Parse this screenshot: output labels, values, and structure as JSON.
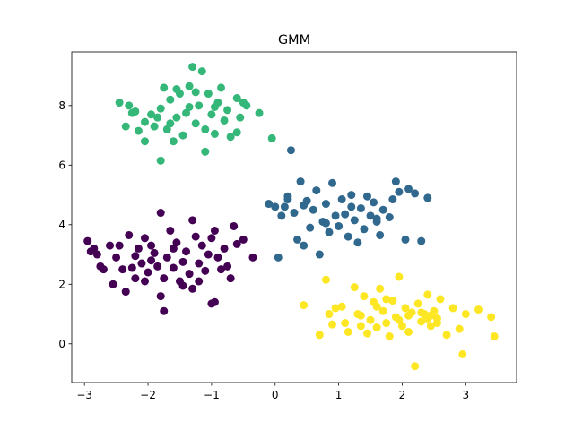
{
  "chart_data": {
    "type": "scatter",
    "title": "GMM",
    "xlabel": "",
    "ylabel": "",
    "xlim": [
      -3.2,
      3.8
    ],
    "ylim": [
      -1.3,
      9.8
    ],
    "xticks": [
      -3,
      -2,
      -1,
      0,
      1,
      2,
      3
    ],
    "yticks": [
      0,
      2,
      4,
      6,
      8
    ],
    "grid": false,
    "legend": "none",
    "series": [
      {
        "color": "#440154",
        "points": [
          [
            -2.95,
            3.45
          ],
          [
            -2.9,
            3.1
          ],
          [
            -2.85,
            3.2
          ],
          [
            -2.8,
            3.0
          ],
          [
            -2.75,
            2.6
          ],
          [
            -2.7,
            2.5
          ],
          [
            -2.55,
            2.0
          ],
          [
            -2.5,
            2.9
          ],
          [
            -2.45,
            3.3
          ],
          [
            -2.4,
            2.5
          ],
          [
            -2.35,
            1.75
          ],
          [
            -2.3,
            3.65
          ],
          [
            -2.25,
            2.55
          ],
          [
            -2.2,
            2.2
          ],
          [
            -2.15,
            3.2
          ],
          [
            -2.1,
            2.7
          ],
          [
            -2.05,
            2.1
          ],
          [
            -2.0,
            2.4
          ],
          [
            -1.95,
            2.8
          ],
          [
            -1.9,
            3.05
          ],
          [
            -1.85,
            2.6
          ],
          [
            -1.8,
            4.4
          ],
          [
            -1.8,
            1.6
          ],
          [
            -1.75,
            2.2
          ],
          [
            -1.75,
            1.1
          ],
          [
            -1.7,
            2.9
          ],
          [
            -1.65,
            3.8
          ],
          [
            -1.6,
            2.55
          ],
          [
            -1.55,
            3.4
          ],
          [
            -1.5,
            2.1
          ],
          [
            -1.45,
            1.95
          ],
          [
            -1.4,
            3.1
          ],
          [
            -1.35,
            2.35
          ],
          [
            -1.3,
            1.85
          ],
          [
            -1.3,
            4.15
          ],
          [
            -1.25,
            3.6
          ],
          [
            -1.2,
            2.7
          ],
          [
            -1.15,
            3.3
          ],
          [
            -1.1,
            2.45
          ],
          [
            -1.05,
            3.0
          ],
          [
            -1.0,
            1.35
          ],
          [
            -0.95,
            3.8
          ],
          [
            -0.9,
            2.9
          ],
          [
            -0.85,
            2.5
          ],
          [
            -0.8,
            3.2
          ],
          [
            -0.7,
            2.2
          ],
          [
            -0.65,
            3.95
          ],
          [
            -0.6,
            3.35
          ],
          [
            -0.5,
            3.5
          ],
          [
            -0.35,
            2.9
          ],
          [
            -1.95,
            3.3
          ],
          [
            -2.05,
            3.55
          ],
          [
            -1.6,
            3.2
          ],
          [
            -1.0,
            3.55
          ],
          [
            -1.2,
            2.1
          ],
          [
            -2.6,
            3.3
          ],
          [
            -2.2,
            2.95
          ],
          [
            -1.45,
            2.75
          ],
          [
            -0.95,
            1.4
          ],
          [
            -0.75,
            2.6
          ]
        ]
      },
      {
        "color": "#31688e",
        "points": [
          [
            -0.1,
            4.7
          ],
          [
            0.0,
            4.6
          ],
          [
            0.05,
            2.9
          ],
          [
            0.1,
            4.3
          ],
          [
            0.15,
            4.6
          ],
          [
            0.2,
            4.95
          ],
          [
            0.25,
            6.5
          ],
          [
            0.3,
            4.4
          ],
          [
            0.35,
            3.5
          ],
          [
            0.4,
            5.45
          ],
          [
            0.45,
            3.3
          ],
          [
            0.5,
            4.8
          ],
          [
            0.55,
            3.9
          ],
          [
            0.6,
            4.5
          ],
          [
            0.65,
            5.15
          ],
          [
            0.7,
            3.0
          ],
          [
            0.75,
            4.1
          ],
          [
            0.8,
            4.7
          ],
          [
            0.85,
            3.75
          ],
          [
            0.9,
            5.4
          ],
          [
            0.95,
            4.3
          ],
          [
            1.0,
            3.95
          ],
          [
            1.05,
            4.85
          ],
          [
            1.1,
            4.35
          ],
          [
            1.15,
            3.6
          ],
          [
            1.2,
            5.0
          ],
          [
            1.25,
            4.15
          ],
          [
            1.3,
            3.4
          ],
          [
            1.35,
            4.55
          ],
          [
            1.4,
            3.85
          ],
          [
            1.45,
            4.95
          ],
          [
            1.5,
            4.3
          ],
          [
            1.55,
            4.75
          ],
          [
            1.6,
            4.2
          ],
          [
            1.65,
            3.65
          ],
          [
            1.7,
            4.5
          ],
          [
            1.8,
            4.25
          ],
          [
            1.85,
            4.85
          ],
          [
            1.9,
            5.45
          ],
          [
            1.95,
            5.1
          ],
          [
            2.05,
            3.5
          ],
          [
            2.1,
            5.2
          ],
          [
            2.2,
            5.05
          ],
          [
            2.3,
            3.45
          ],
          [
            2.4,
            4.9
          ],
          [
            0.2,
            4.85
          ],
          [
            0.45,
            4.65
          ],
          [
            0.8,
            4.05
          ],
          [
            1.2,
            4.6
          ],
          [
            1.6,
            4.1
          ]
        ]
      },
      {
        "color": "#35b779",
        "points": [
          [
            -2.45,
            8.1
          ],
          [
            -2.35,
            7.3
          ],
          [
            -2.3,
            8.0
          ],
          [
            -2.2,
            7.8
          ],
          [
            -2.15,
            7.15
          ],
          [
            -2.05,
            6.8
          ],
          [
            -1.95,
            7.7
          ],
          [
            -1.9,
            7.3
          ],
          [
            -1.8,
            7.9
          ],
          [
            -1.75,
            8.6
          ],
          [
            -1.7,
            7.2
          ],
          [
            -1.65,
            8.2
          ],
          [
            -1.6,
            6.8
          ],
          [
            -1.55,
            7.6
          ],
          [
            -1.5,
            8.4
          ],
          [
            -1.45,
            7.0
          ],
          [
            -1.4,
            7.75
          ],
          [
            -1.35,
            8.65
          ],
          [
            -1.3,
            9.3
          ],
          [
            -1.25,
            7.4
          ],
          [
            -1.2,
            8.0
          ],
          [
            -1.15,
            9.15
          ],
          [
            -1.1,
            7.2
          ],
          [
            -1.05,
            8.4
          ],
          [
            -1.0,
            7.7
          ],
          [
            -0.95,
            7.05
          ],
          [
            -0.9,
            8.1
          ],
          [
            -0.85,
            8.6
          ],
          [
            -0.8,
            7.5
          ],
          [
            -0.75,
            7.85
          ],
          [
            -0.7,
            6.95
          ],
          [
            -0.6,
            8.25
          ],
          [
            -0.55,
            7.6
          ],
          [
            -0.45,
            8.0
          ],
          [
            -0.25,
            7.75
          ],
          [
            -0.05,
            6.9
          ],
          [
            -1.8,
            6.15
          ],
          [
            -1.1,
            6.45
          ],
          [
            -0.6,
            7.1
          ],
          [
            -0.5,
            8.1
          ],
          [
            -1.55,
            8.55
          ],
          [
            -1.35,
            7.95
          ],
          [
            -1.85,
            7.6
          ],
          [
            -2.05,
            7.45
          ],
          [
            -1.25,
            8.45
          ],
          [
            -0.95,
            7.95
          ],
          [
            -1.65,
            7.4
          ],
          [
            -2.25,
            7.75
          ]
        ]
      },
      {
        "color": "#fde725",
        "points": [
          [
            0.45,
            1.3
          ],
          [
            0.7,
            0.3
          ],
          [
            0.8,
            2.15
          ],
          [
            0.85,
            1.0
          ],
          [
            0.9,
            0.65
          ],
          [
            0.95,
            1.2
          ],
          [
            1.05,
            1.25
          ],
          [
            1.1,
            0.7
          ],
          [
            1.15,
            0.4
          ],
          [
            1.25,
            1.9
          ],
          [
            1.3,
            1.0
          ],
          [
            1.35,
            0.6
          ],
          [
            1.4,
            1.6
          ],
          [
            1.45,
            0.35
          ],
          [
            1.5,
            0.8
          ],
          [
            1.55,
            1.4
          ],
          [
            1.6,
            0.55
          ],
          [
            1.65,
            1.85
          ],
          [
            1.7,
            1.1
          ],
          [
            1.75,
            0.7
          ],
          [
            1.8,
            0.25
          ],
          [
            1.85,
            1.45
          ],
          [
            1.9,
            0.9
          ],
          [
            1.95,
            2.25
          ],
          [
            2.0,
            0.6
          ],
          [
            2.05,
            1.2
          ],
          [
            2.1,
            0.4
          ],
          [
            2.15,
            1.05
          ],
          [
            2.2,
            -0.75
          ],
          [
            2.25,
            1.35
          ],
          [
            2.3,
            0.75
          ],
          [
            2.35,
            1.0
          ],
          [
            2.4,
            1.65
          ],
          [
            2.45,
            0.6
          ],
          [
            2.5,
            1.1
          ],
          [
            2.55,
            0.85
          ],
          [
            2.6,
            1.5
          ],
          [
            2.7,
            0.3
          ],
          [
            2.8,
            1.2
          ],
          [
            2.9,
            0.5
          ],
          [
            2.95,
            -0.35
          ],
          [
            3.0,
            1.0
          ],
          [
            3.2,
            1.15
          ],
          [
            3.4,
            0.9
          ],
          [
            3.45,
            0.25
          ],
          [
            2.45,
            0.95
          ],
          [
            2.3,
            1.05
          ],
          [
            1.95,
            0.8
          ],
          [
            1.6,
            1.25
          ],
          [
            2.55,
            0.7
          ],
          [
            2.4,
            0.85
          ],
          [
            1.75,
            1.5
          ],
          [
            2.1,
            0.95
          ],
          [
            1.35,
            0.95
          ]
        ]
      }
    ]
  }
}
